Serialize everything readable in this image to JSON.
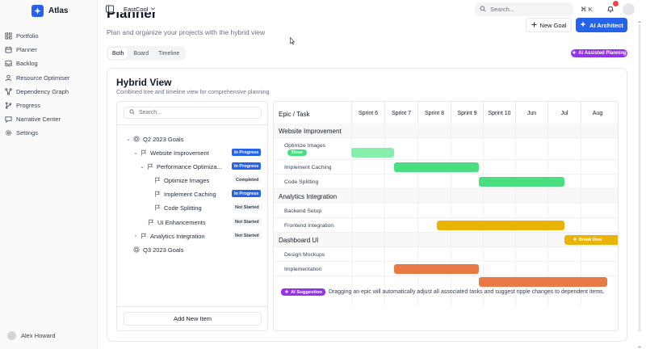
{
  "app": {
    "name": "Atlas",
    "brand_color": "#2563eb"
  },
  "sidebar": {
    "items": [
      {
        "label": "Portfolio",
        "icon": "grid-icon"
      },
      {
        "label": "Planner",
        "icon": "calendar-icon"
      },
      {
        "label": "Backlog",
        "icon": "inbox-icon"
      },
      {
        "label": "Resource Optimiser",
        "icon": "users-icon"
      },
      {
        "label": "Dependency Graph",
        "icon": "network-icon"
      },
      {
        "label": "Progress",
        "icon": "git-branch-icon"
      },
      {
        "label": "Narrative Center",
        "icon": "chat-icon"
      },
      {
        "label": "Settings",
        "icon": "gear-icon"
      }
    ],
    "user_name": "Alex Howard"
  },
  "topbar": {
    "workspace": "EastCool",
    "search_placeholder": "Search...",
    "shortcut": "⌘ K"
  },
  "header": {
    "title": "Planner",
    "subtitle": "Plan and organize your projects with the hybrid view",
    "new_goal": "New Goal",
    "ai_architect": "AI Architect"
  },
  "view_tabs": [
    "Both",
    "Board",
    "Timeline"
  ],
  "ai_assisted_badge": "AI Assisted Planning",
  "card": {
    "title": "Hybrid View",
    "subtitle": "Combined tree and timeline view for comprehensive planning"
  },
  "tree": {
    "search_placeholder": "Search...",
    "add_button": "Add New Item",
    "rows": [
      {
        "label": "Q2 2023 Goals",
        "status": ""
      },
      {
        "label": "Website Improvement",
        "status": "In Progress"
      },
      {
        "label": "Performance Optimiza...",
        "status": "In Progress"
      },
      {
        "label": "Optimize Images",
        "status": "Completed"
      },
      {
        "label": "Implement Caching",
        "status": "In Progress"
      },
      {
        "label": "Code Splitting",
        "status": "Not Started"
      },
      {
        "label": "UI Enhancements",
        "status": "Not Started"
      },
      {
        "label": "Analytics Integration",
        "status": "Not Started"
      },
      {
        "label": "Q3 2023 Goals",
        "status": ""
      }
    ]
  },
  "gantt": {
    "header_label": "Epic / Task",
    "columns": [
      "Sprint 6",
      "Sprint 7",
      "Sprint 8",
      "Sprint 9",
      "Sprint 10",
      "Jun",
      "Jul",
      "Aug"
    ],
    "rows": [
      {
        "label": "Website Improvement",
        "epic": true
      },
      {
        "label": "Optimize Images",
        "badge": "Done",
        "bar": {
          "start": 0,
          "end": 1.3,
          "color": "#86efac"
        }
      },
      {
        "label": "Implement Caching",
        "bar": {
          "start": 1.3,
          "end": 3.9,
          "color": "#4ade80"
        }
      },
      {
        "label": "Code Splitting",
        "bar": {
          "start": 3.9,
          "end": 6.5,
          "color": "#4ade80"
        }
      },
      {
        "label": "Analytics Integration",
        "epic": true
      },
      {
        "label": "Backend Setup"
      },
      {
        "label": "Frontend Integration",
        "bar": {
          "start": 2.6,
          "end": 6.5,
          "color": "#eab308"
        }
      },
      {
        "label": "Dashboard UI",
        "epic": true,
        "bar": {
          "start": 6.5,
          "end": 8.2,
          "color": "#eab308",
          "text": "Break Dow"
        }
      },
      {
        "label": "Design Mockups"
      },
      {
        "label": "Implementation",
        "bar": {
          "start": 1.3,
          "end": 3.9,
          "color": "#ea7a45"
        }
      },
      {
        "label": "",
        "bar": {
          "start": 3.9,
          "end": 7.8,
          "color": "#ea7a45"
        }
      }
    ],
    "ai_suggestion_label": "AI Suggestion",
    "ai_suggestion_text": "Dragging an epic will automatically adjust all associated tasks and suggest ripple changes to dependent items."
  }
}
